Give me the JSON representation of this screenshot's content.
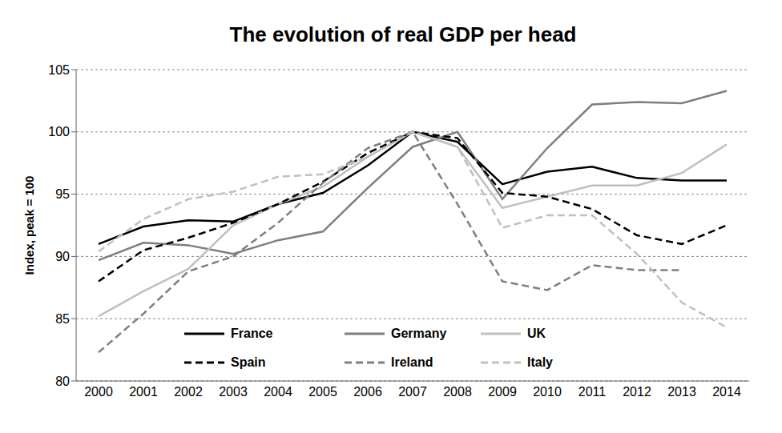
{
  "chart_data": {
    "type": "line",
    "title": "The evolution of real GDP per head",
    "y_label": "Index, peak = 100",
    "categories": [
      "2000",
      "2001",
      "2002",
      "2003",
      "2004",
      "2005",
      "2006",
      "2007",
      "2008",
      "2009",
      "2010",
      "2011",
      "2012",
      "2013",
      "2014"
    ],
    "series": [
      {
        "name": "France",
        "color": "#000000",
        "line_style": "solid",
        "values": [
          91.0,
          92.4,
          92.9,
          92.8,
          94.2,
          95.1,
          97.3,
          100,
          99.2,
          95.8,
          96.8,
          97.2,
          96.3,
          96.1,
          96.1
        ]
      },
      {
        "name": "Germany",
        "color": "#7f7f7f",
        "line_style": "solid",
        "values": [
          89.7,
          91.1,
          90.9,
          90.2,
          91.3,
          92.0,
          95.5,
          98.8,
          100,
          94.6,
          98.7,
          102.2,
          102.4,
          102.3,
          103.3
        ]
      },
      {
        "name": "UK",
        "color": "#c0c0c0",
        "line_style": "solid",
        "values": [
          85.2,
          87.2,
          89.0,
          92.5,
          94.2,
          95.6,
          98.0,
          100,
          98.8,
          93.9,
          94.8,
          95.7,
          95.7,
          96.7,
          99.0
        ]
      },
      {
        "name": "Spain",
        "color": "#000000",
        "line_style": "dashed",
        "values": [
          88.0,
          90.5,
          91.5,
          92.7,
          94.2,
          96.0,
          98.3,
          100,
          99.5,
          95.1,
          94.8,
          93.8,
          91.7,
          91.0,
          92.5
        ]
      },
      {
        "name": "Ireland",
        "color": "#7f7f7f",
        "line_style": "dashed",
        "values": [
          82.3,
          85.4,
          88.8,
          90.0,
          92.7,
          95.9,
          98.7,
          100,
          94.2,
          88.0,
          87.3,
          89.3,
          88.9,
          88.9,
          null
        ]
      },
      {
        "name": "Italy",
        "color": "#c0c0c0",
        "line_style": "dashed",
        "values": [
          90.4,
          93.0,
          94.6,
          95.2,
          96.4,
          96.6,
          98.0,
          100,
          98.8,
          92.3,
          93.3,
          93.3,
          90.2,
          86.3,
          84.3
        ]
      }
    ],
    "ylim": [
      80,
      105
    ],
    "yticks": [
      80,
      85,
      90,
      95,
      100,
      105
    ],
    "grid": true,
    "legend": "bottom"
  }
}
